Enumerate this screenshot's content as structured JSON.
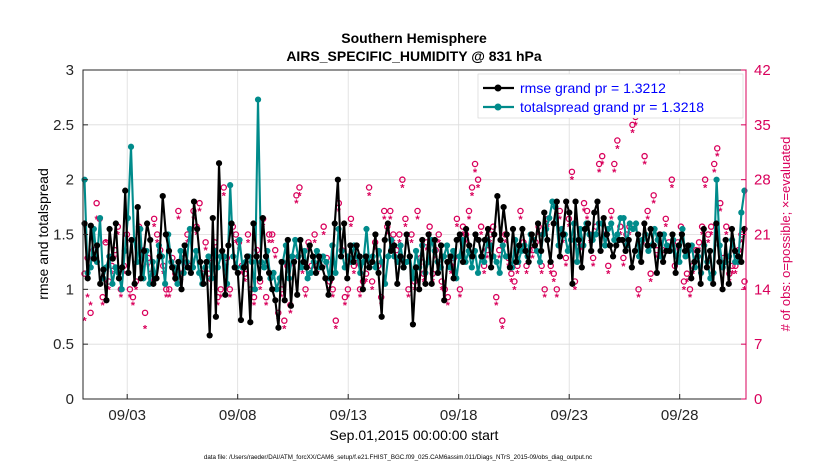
{
  "chart_data": {
    "type": "line",
    "title": "Southern Hemisphere",
    "subtitle": "AIRS_SPECIFIC_HUMIDITY @ 831 hPa",
    "xlabel": "Sep.01,2015 00:00:00 start",
    "ylabel": "rmse and totalspread",
    "y2label": "# of obs: o=possible; ×=evaluated",
    "footnote": "data file: /Users/raeder/DAI/ATM_forcXX/CAM6_setup/f.e21.FHIST_BGC.f09_025.CAM6assim.011/Diags_NTrS_2015-09/obs_diag_output.nc",
    "xlim": [
      0.5,
      30.5
    ],
    "ylim": [
      0,
      3
    ],
    "y2lim": [
      0,
      42
    ],
    "x_ticks": [
      2.5,
      7.5,
      12.5,
      17.5,
      22.5,
      27.5
    ],
    "x_tick_labels": [
      "09/03",
      "09/08",
      "09/13",
      "09/18",
      "09/23",
      "09/28"
    ],
    "y_ticks": [
      0,
      0.5,
      1,
      1.5,
      2,
      2.5,
      3
    ],
    "y_tick_labels": [
      "0",
      "0.5",
      "1",
      "1.5",
      "2",
      "2.5",
      "3"
    ],
    "y2_ticks": [
      0,
      7,
      14,
      21,
      28,
      35,
      42
    ],
    "y2_tick_labels": [
      "0",
      "7",
      "14",
      "21",
      "28",
      "35",
      "42"
    ],
    "legend_position": "top-right",
    "colors": {
      "rmse": "#000000",
      "spread": "#008b8b",
      "obs": "#d9005b",
      "axis_right": "#d9005b",
      "legend_text": "#0000ff"
    },
    "series": [
      {
        "name": "rmse grand pr = 1.3212",
        "axis": "left",
        "values": [
          1.6,
          1.1,
          1.58,
          1.28,
          1.4,
          1.05,
          1.18,
          0.9,
          1.55,
          1.28,
          1.6,
          1.1,
          1.2,
          1.9,
          1.15,
          1.45,
          1.05,
          1.75,
          1.1,
          1.35,
          1.6,
          1.45,
          1.05,
          1.1,
          1.3,
          1.85,
          1.5,
          1.35,
          1.2,
          1.1,
          1.25,
          1.0,
          1.4,
          1.2,
          1.15,
          1.8,
          1.55,
          1.25,
          1.05,
          1.25,
          0.58,
          1.65,
          0.75,
          2.15,
          1.35,
          0.95,
          1.4,
          1.6,
          1.2,
          1.15,
          0.72,
          1.2,
          1.3,
          0.7,
          1.6,
          1.3,
          1.1,
          1.65,
          1.3,
          1.15,
          1.0,
          0.9,
          0.65,
          1.25,
          0.9,
          1.45,
          0.85,
          1.25,
          0.95,
          1.45,
          1.25,
          1.2,
          1.4,
          1.3,
          1.15,
          1.3,
          1.2,
          1.1,
          0.95,
          1.1,
          1.6,
          2.0,
          1.3,
          1.6,
          1.1,
          1.4,
          1.25,
          1.4,
          1.3,
          1.0,
          1.3,
          1.2,
          1.25,
          1.5,
          1.15,
          0.75,
          1.45,
          1.6,
          1.35,
          1.4,
          1.05,
          1.3,
          1.2,
          1.5,
          1.3,
          0.68,
          1.2,
          1.0,
          1.45,
          1.05,
          1.5,
          1.05,
          1.45,
          1.15,
          1.4,
          0.9,
          1.25,
          1.3,
          1.1,
          1.45,
          1.5,
          1.25,
          1.55,
          1.4,
          1.3,
          1.5,
          1.45,
          1.3,
          1.45,
          1.55,
          1.2,
          1.5,
          1.85,
          1.45,
          1.75,
          1.5,
          1.2,
          1.55,
          1.25,
          1.4,
          1.55,
          1.35,
          1.25,
          1.5,
          1.4,
          1.6,
          1.35,
          1.7,
          1.45,
          1.25,
          1.6,
          1.8,
          1.3,
          1.5,
          1.8,
          1.7,
          1.05,
          1.8,
          1.45,
          1.2,
          1.55,
          1.6,
          1.35,
          1.7,
          1.8,
          1.35,
          1.65,
          1.5,
          1.4,
          1.3,
          1.4,
          1.45,
          1.45,
          1.35,
          1.45,
          1.2,
          1.35,
          1.5,
          1.25,
          1.6,
          1.4,
          1.55,
          1.4,
          1.15,
          1.5,
          1.25,
          1.35,
          1.35,
          1.5,
          1.15,
          1.4,
          1.5,
          1.35,
          1.4,
          1.1,
          1.25,
          1.35,
          1.05,
          1.55,
          1.2,
          1.35,
          1.05,
          1.6,
          1.25,
          1.0,
          1.45,
          1.05,
          1.55,
          1.35,
          1.3,
          1.25,
          1.55
        ]
      },
      {
        "name": "totalspread grand pr = 1.3218",
        "axis": "left",
        "values": [
          2.0,
          1.15,
          1.2,
          1.55,
          1.25,
          1.65,
          1.1,
          1.2,
          1.3,
          1.05,
          1.2,
          1.15,
          1.0,
          1.35,
          1.65,
          2.3,
          1.45,
          1.25,
          1.55,
          1.1,
          1.35,
          1.05,
          1.25,
          1.1,
          1.4,
          1.3,
          1.05,
          1.5,
          1.25,
          1.2,
          1.05,
          1.35,
          1.15,
          1.25,
          1.55,
          1.2,
          1.35,
          1.15,
          1.05,
          1.2,
          1.3,
          1.1,
          1.35,
          1.2,
          1.3,
          1.3,
          1.05,
          1.95,
          1.3,
          1.2,
          1.45,
          1.2,
          1.25,
          1.3,
          1.25,
          1.0,
          2.73,
          1.25,
          1.2,
          1.35,
          1.1,
          1.15,
          1.0,
          1.1,
          1.25,
          1.4,
          1.1,
          1.3,
          1.45,
          1.3,
          1.2,
          1.35,
          1.1,
          1.15,
          1.25,
          1.35,
          1.2,
          1.3,
          1.25,
          1.1,
          1.4,
          1.15,
          1.55,
          1.35,
          1.2,
          1.3,
          1.25,
          1.4,
          1.3,
          1.15,
          1.25,
          1.55,
          1.2,
          1.3,
          1.2,
          1.35,
          1.25,
          1.05,
          1.3,
          1.45,
          1.3,
          1.25,
          1.4,
          1.2,
          1.25,
          1.3,
          1.1,
          1.35,
          1.2,
          1.4,
          1.15,
          1.25,
          1.45,
          1.35,
          1.25,
          1.2,
          1.3,
          1.4,
          1.2,
          1.35,
          1.1,
          1.3,
          1.45,
          1.25,
          1.35,
          1.2,
          1.35,
          1.15,
          1.3,
          1.25,
          1.45,
          1.4,
          1.3,
          1.25,
          1.15,
          1.4,
          1.3,
          1.3,
          1.2,
          1.45,
          1.25,
          1.35,
          1.4,
          1.3,
          1.5,
          1.45,
          1.35,
          1.25,
          1.5,
          1.55,
          1.65,
          1.8,
          1.75,
          1.4,
          1.55,
          1.5,
          1.35,
          1.45,
          1.6,
          1.25,
          1.55,
          1.4,
          1.6,
          1.5,
          1.45,
          1.5,
          1.6,
          1.6,
          1.4,
          1.55,
          1.6,
          1.45,
          1.5,
          1.65,
          1.65,
          1.4,
          1.6,
          1.55,
          1.6,
          1.3,
          1.45,
          1.5,
          1.35,
          1.4,
          1.55,
          1.45,
          1.3,
          1.5,
          1.4,
          1.35,
          1.45,
          1.3,
          1.25,
          1.55,
          1.3,
          1.35,
          1.4,
          1.2,
          1.3,
          1.15,
          1.4,
          1.25,
          1.1,
          1.15,
          2.0,
          1.4,
          1.2,
          1.25,
          1.3,
          1.45,
          1.25,
          1.25,
          1.7,
          1.9
        ]
      },
      {
        "name": "# of obs possible",
        "axis": "right",
        "marker": "o",
        "values": [
          16,
          18,
          11,
          19,
          25,
          23,
          13,
          20,
          15,
          17,
          19,
          22,
          14,
          17,
          21,
          14,
          13,
          15,
          22,
          19,
          11,
          18,
          16,
          23,
          21,
          19,
          17,
          14,
          14,
          18,
          16,
          24,
          16,
          18,
          21,
          17,
          24,
          22,
          25,
          16,
          20,
          16,
          18,
          20,
          13,
          14,
          27,
          18,
          14,
          22,
          21,
          20,
          17,
          16,
          21,
          14,
          13,
          19,
          15,
          23,
          13,
          21,
          21,
          19,
          11,
          14,
          10,
          17,
          12,
          18,
          26,
          27,
          17,
          14,
          20,
          17,
          21,
          17,
          18,
          22,
          18,
          15,
          14,
          10,
          25,
          19,
          13,
          14,
          23,
          17,
          18,
          14,
          15,
          16,
          27,
          15,
          20,
          17,
          13,
          24,
          22,
          24,
          21,
          19,
          21,
          28,
          23,
          14,
          21,
          15,
          24,
          18,
          16,
          20,
          22,
          16,
          19,
          21,
          15,
          14,
          13,
          17,
          18,
          23,
          14,
          22,
          21,
          24,
          27,
          30,
          28,
          22,
          17,
          19,
          21,
          22,
          13,
          19,
          10,
          21,
          18,
          16,
          15,
          17,
          24,
          20,
          17,
          19,
          19,
          20,
          22,
          17,
          14,
          23,
          17,
          16,
          14,
          24,
          21,
          18,
          23,
          29,
          15,
          20,
          20,
          25,
          24,
          21,
          18,
          22,
          30,
          31,
          21,
          17,
          24,
          30,
          33,
          22,
          18,
          21,
          22,
          35,
          36,
          14,
          20,
          31,
          24,
          16,
          26,
          19,
          21,
          19,
          23,
          20,
          28,
          17,
          20,
          22,
          15,
          16,
          14,
          17,
          19,
          20,
          22,
          28,
          21,
          22,
          30,
          32,
          25,
          18,
          22,
          16,
          17,
          17,
          19,
          21,
          15
        ]
      },
      {
        "name": "# of obs evaluated",
        "axis": "right",
        "marker": "×",
        "values": [
          10,
          13,
          12,
          18,
          23,
          23,
          12,
          20,
          14,
          16,
          18,
          21,
          13,
          16,
          20,
          13,
          12,
          14,
          21,
          18,
          9,
          17,
          15,
          22,
          20,
          18,
          16,
          13,
          13,
          17,
          15,
          23,
          15,
          17,
          20,
          16,
          23,
          21,
          24,
          15,
          19,
          15,
          17,
          19,
          12,
          13,
          26,
          17,
          13,
          21,
          20,
          19,
          16,
          15,
          20,
          13,
          12,
          18,
          14,
          22,
          12,
          20,
          20,
          18,
          10,
          13,
          9,
          16,
          11,
          17,
          25,
          26,
          16,
          13,
          19,
          16,
          20,
          16,
          17,
          21,
          17,
          14,
          13,
          9,
          24,
          18,
          12,
          13,
          22,
          16,
          17,
          13,
          14,
          15,
          26,
          14,
          19,
          16,
          12,
          23,
          21,
          23,
          20,
          18,
          20,
          27,
          22,
          13,
          20,
          14,
          23,
          17,
          15,
          19,
          21,
          15,
          18,
          20,
          14,
          13,
          12,
          16,
          17,
          22,
          13,
          21,
          20,
          23,
          26,
          29,
          27,
          21,
          16,
          18,
          20,
          21,
          12,
          18,
          9,
          20,
          17,
          15,
          14,
          16,
          23,
          19,
          16,
          18,
          18,
          19,
          21,
          16,
          13,
          22,
          16,
          15,
          13,
          23,
          20,
          17,
          22,
          28,
          14,
          19,
          19,
          24,
          23,
          20,
          17,
          21,
          29,
          30,
          20,
          16,
          23,
          29,
          32,
          21,
          17,
          20,
          21,
          34,
          35,
          13,
          19,
          30,
          23,
          15,
          25,
          18,
          20,
          18,
          22,
          19,
          27,
          16,
          19,
          21,
          14,
          15,
          13,
          16,
          18,
          19,
          21,
          27,
          20,
          21,
          29,
          31,
          24,
          17,
          21,
          15,
          16,
          16,
          18,
          20,
          14
        ]
      }
    ]
  }
}
